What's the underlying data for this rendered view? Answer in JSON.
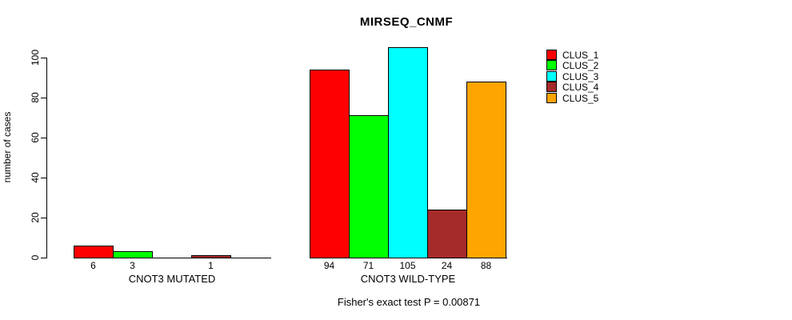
{
  "title": "MIRSEQ_CNMF",
  "footer": "Fisher's exact test P = 0.00871",
  "chart_data": {
    "type": "bar",
    "title": "MIRSEQ_CNMF",
    "xlabel": "",
    "ylabel": "number of cases",
    "ylim": [
      0,
      105
    ],
    "yticks": [
      0,
      20,
      40,
      60,
      80,
      100
    ],
    "grid": false,
    "legend_position": "top-right",
    "categories": [
      "CNOT3 MUTATED",
      "CNOT3 WILD-TYPE"
    ],
    "series": [
      {
        "name": "CLUS_1",
        "color": "#ff0000",
        "values": [
          6,
          94
        ]
      },
      {
        "name": "CLUS_2",
        "color": "#00ff00",
        "values": [
          3,
          71
        ]
      },
      {
        "name": "CLUS_3",
        "color": "#00ffff",
        "values": [
          0,
          105
        ]
      },
      {
        "name": "CLUS_4",
        "color": "#a52a2a",
        "values": [
          1,
          24
        ]
      },
      {
        "name": "CLUS_5",
        "color": "#ffa500",
        "values": [
          0,
          88
        ]
      }
    ],
    "bar_value_labels_shown_when_positive": true,
    "annotation": "Fisher's exact test P = 0.00871"
  }
}
